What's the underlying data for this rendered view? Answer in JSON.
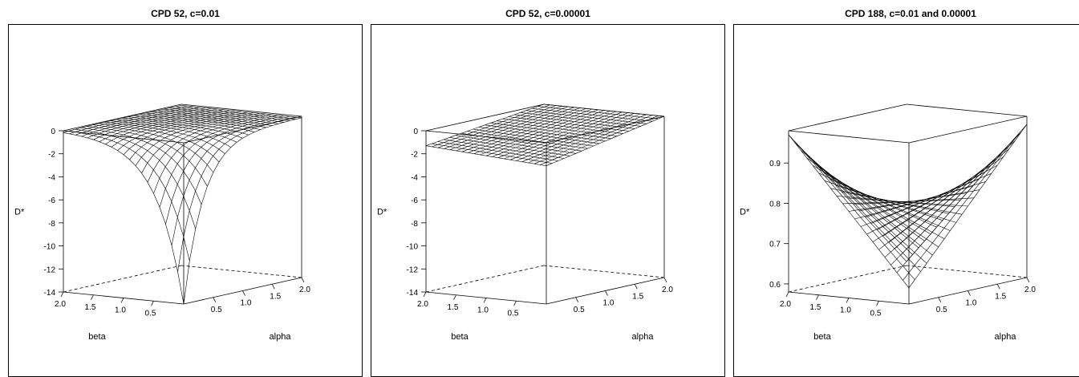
{
  "chart_data": [
    {
      "type": "surface",
      "title": "CPD 52, c=0.01",
      "xlabel": "alpha",
      "ylabel": "beta",
      "zlabel": "D*",
      "xlim": [
        0,
        2
      ],
      "ylim": [
        0,
        2
      ],
      "zlim": [
        -14,
        0
      ],
      "x_ticks": [
        "0.5",
        "1.0",
        "1.5",
        "2.0"
      ],
      "y_ticks": [
        "2.0",
        "1.5",
        "1.0",
        "0.5"
      ],
      "z_ticks": [
        "0",
        "-2",
        "-4",
        "-6",
        "-8",
        "-10",
        "-12",
        "-14"
      ],
      "surface": {
        "corners": {
          "alpha0_beta0": -14.0,
          "alpha2_beta0": -0.1,
          "alpha0_beta2": 0.0,
          "alpha2_beta2": 0.0
        },
        "grid": "20x20 wireframe"
      }
    },
    {
      "type": "surface",
      "title": "CPD 52, c=0.00001",
      "xlabel": "alpha",
      "ylabel": "beta",
      "zlabel": "D*",
      "xlim": [
        0,
        2
      ],
      "ylim": [
        0,
        2
      ],
      "zlim": [
        -14,
        0
      ],
      "x_ticks": [
        "0.5",
        "1.0",
        "1.5",
        "2.0"
      ],
      "y_ticks": [
        "2.0",
        "1.5",
        "1.0",
        "0.5"
      ],
      "z_ticks": [
        "0",
        "-2",
        "-4",
        "-6",
        "-8",
        "-10",
        "-12",
        "-14"
      ],
      "surface": {
        "corners": {
          "alpha0_beta0": -2.0,
          "alpha2_beta0": 0.0,
          "alpha0_beta2": -1.3,
          "alpha2_beta2": 0.0
        },
        "grid": "20x20 wireframe"
      }
    },
    {
      "type": "surface",
      "title": "CPD 188, c=0.01 and 0.00001",
      "xlabel": "alpha",
      "ylabel": "beta",
      "zlabel": "D*",
      "xlim": [
        0,
        2
      ],
      "ylim": [
        0,
        2
      ],
      "zlim": [
        0.58,
        0.98
      ],
      "x_ticks": [
        "0.5",
        "1.0",
        "1.5",
        "2.0"
      ],
      "y_ticks": [
        "2.0",
        "1.5",
        "1.0",
        "0.5"
      ],
      "z_ticks": [
        "0.9",
        "0.8",
        "0.7",
        "0.6"
      ],
      "surface": {
        "corners": {
          "alpha0_beta0": 0.62,
          "alpha2_beta0": 0.96,
          "alpha0_beta2": 0.97,
          "alpha2_beta2": 0.59
        },
        "grid": "20x20 wireframe"
      }
    }
  ]
}
